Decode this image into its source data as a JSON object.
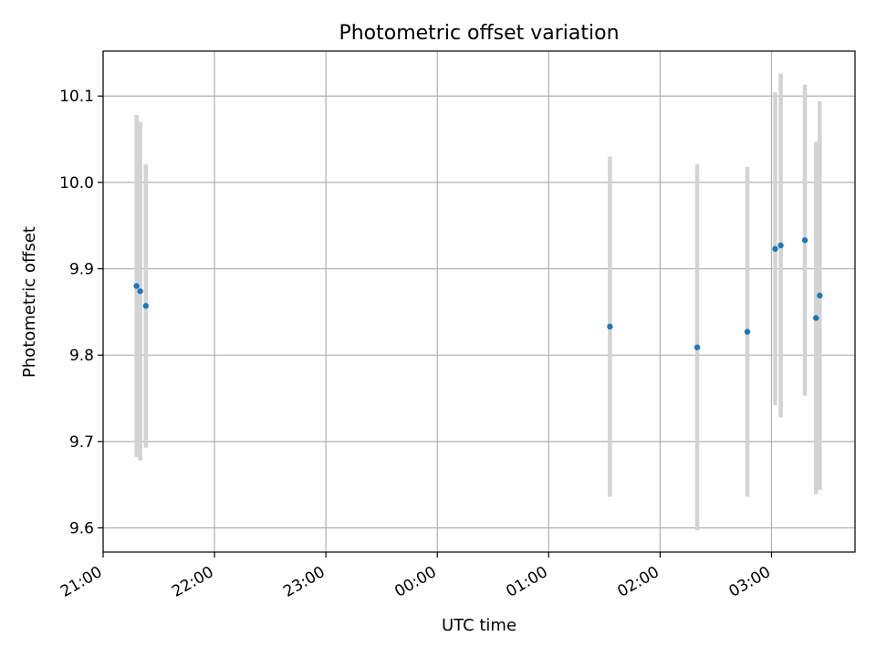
{
  "chart_data": {
    "type": "scatter",
    "title": "Photometric offset variation",
    "xlabel": "UTC time",
    "ylabel": "Photometric offset",
    "x_ticks": [
      "21:00",
      "22:00",
      "23:00",
      "00:00",
      "01:00",
      "02:00",
      "03:00"
    ],
    "y_ticks": [
      "9.6",
      "9.7",
      "9.8",
      "9.9",
      "10.0",
      "10.1"
    ],
    "xlim": [
      "21:00",
      "03:45"
    ],
    "ylim": [
      9.572,
      10.152
    ],
    "grid": true,
    "point_color": "#1f77b4",
    "errorbar_color": "#d3d3d3",
    "series": [
      {
        "points": [
          {
            "x": "21:18",
            "y": 9.88,
            "yerr": 0.198
          },
          {
            "x": "21:20",
            "y": 9.874,
            "yerr": 0.196
          },
          {
            "x": "21:23",
            "y": 9.857,
            "yerr": 0.164
          },
          {
            "x": "01:33",
            "y": 9.833,
            "yerr": 0.197
          },
          {
            "x": "02:20",
            "y": 9.809,
            "yerr": 0.212
          },
          {
            "x": "02:47",
            "y": 9.827,
            "yerr": 0.191
          },
          {
            "x": "03:02",
            "y": 9.923,
            "yerr": 0.181
          },
          {
            "x": "03:05",
            "y": 9.927,
            "yerr": 0.199
          },
          {
            "x": "03:18",
            "y": 9.933,
            "yerr": 0.18
          },
          {
            "x": "03:24",
            "y": 9.843,
            "yerr": 0.204
          },
          {
            "x": "03:26",
            "y": 9.869,
            "yerr": 0.225
          }
        ]
      }
    ]
  }
}
